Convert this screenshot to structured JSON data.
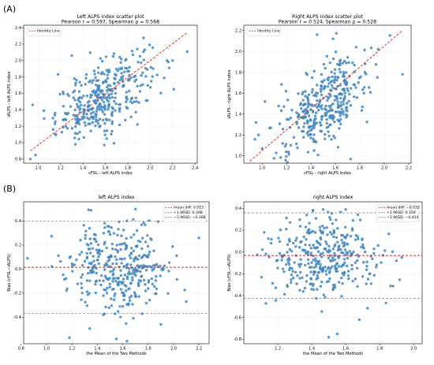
{
  "panel_labels": [
    "(A)",
    "(B)"
  ],
  "chart_data": [
    {
      "type": "scatter",
      "id": "A-left",
      "title": "Left ALPS index scatter plot",
      "subtitle": "Pearson r = 0.597, Spearman ρ = 0.568",
      "xlabel": "cFSL - left ALPS index",
      "ylabel": "iALPS - left ALPS index",
      "xlim": [
        0.87,
        2.42
      ],
      "ylim": [
        0.75,
        2.43
      ],
      "xticks": [
        1.0,
        1.2,
        1.4,
        1.6,
        1.8,
        2.0,
        2.2,
        2.4
      ],
      "yticks": [
        0.8,
        1.0,
        1.2,
        1.4,
        1.6,
        1.8,
        2.0,
        2.2,
        2.4
      ],
      "tick_decimals": 1,
      "grid": true,
      "legend": [
        "Identity Line"
      ],
      "legend_position": "top-left",
      "point_color": "#3f86c2",
      "line_color": "#e0221c",
      "point_count": 360,
      "point_center": [
        1.58,
        1.56
      ],
      "point_spread": [
        0.21,
        0.26
      ],
      "correlation": 0.597,
      "identity_line": [
        [
          0.93,
          0.9
        ],
        [
          2.33,
          2.34
        ]
      ],
      "outliers": [
        [
          0.93,
          0.8
        ],
        [
          2.33,
          2.11
        ],
        [
          2.2,
          2.0
        ],
        [
          0.95,
          1.46
        ],
        [
          1.05,
          1.39
        ],
        [
          1.15,
          1.36
        ],
        [
          2.15,
          2.0
        ],
        [
          1.3,
          2.06
        ],
        [
          2.17,
          1.91
        ],
        [
          1.95,
          2.13
        ]
      ]
    },
    {
      "type": "scatter",
      "id": "A-right",
      "title": "Right ALPS index scatter plot",
      "subtitle": "Pearson r = 0.524, Spearman ρ = 0.528",
      "xlabel": "cFSL - right ALPS index",
      "ylabel": "iALPS - right ALPS index",
      "xlim": [
        0.85,
        2.22
      ],
      "ylim": [
        0.93,
        2.25
      ],
      "xticks": [
        1.0,
        1.2,
        1.4,
        1.6,
        1.8,
        2.0,
        2.2
      ],
      "yticks": [
        1.0,
        1.2,
        1.4,
        1.6,
        1.8,
        2.0,
        2.2
      ],
      "tick_decimals": 1,
      "grid": true,
      "legend": [
        "Identity Line"
      ],
      "legend_position": "top-left",
      "point_color": "#3f86c2",
      "line_color": "#e0221c",
      "point_count": 360,
      "point_center": [
        1.5,
        1.49
      ],
      "point_spread": [
        0.18,
        0.22
      ],
      "correlation": 0.524,
      "identity_line": [
        [
          0.9,
          0.95
        ],
        [
          2.15,
          2.2
        ]
      ],
      "outliers": [
        [
          2.15,
          1.78
        ],
        [
          1.45,
          2.16
        ],
        [
          1.58,
          2.12
        ],
        [
          0.95,
          1.32
        ],
        [
          1.0,
          1.07
        ],
        [
          0.97,
          1.2
        ],
        [
          1.95,
          2.02
        ],
        [
          1.77,
          2.04
        ]
      ]
    },
    {
      "type": "scatter",
      "id": "B-left",
      "title": "left ALPS index",
      "xlabel": "the Mean of the Two Methods",
      "ylabel": "Bias (cFSL−iALPS)",
      "xlim": [
        0.82,
        2.28
      ],
      "ylim": [
        -0.62,
        0.56
      ],
      "xticks": [
        0.8,
        1.0,
        1.2,
        1.4,
        1.6,
        1.8,
        2.0,
        2.2
      ],
      "yticks": [
        -0.4,
        -0.2,
        0.0,
        0.2,
        0.4
      ],
      "tick_decimals": 1,
      "grid": true,
      "legend": [
        "mean diff: 0.015",
        "+1.96SD: 0.398",
        "−1.96SD: −0.368"
      ],
      "legend_position": "top-right",
      "mean_diff": 0.015,
      "upper_loa": 0.398,
      "lower_loa": -0.368,
      "point_color": "#3f86c2",
      "line_color": "#e0221c",
      "loa_color": "#808080",
      "point_count": 360,
      "point_center": [
        1.58,
        0.015
      ],
      "point_spread": [
        0.2,
        0.19
      ],
      "correlation": 0.0,
      "outliers": [
        [
          0.85,
          0.09
        ],
        [
          1.18,
          -0.57
        ],
        [
          2.2,
          0.26
        ],
        [
          1.7,
          0.5
        ],
        [
          1.55,
          -0.58
        ],
        [
          1.35,
          0.49
        ],
        [
          2.1,
          -0.27
        ],
        [
          1.9,
          -0.46
        ]
      ]
    },
    {
      "type": "scatter",
      "id": "B-right",
      "title": "right ALPS index",
      "xlabel": "the Mean of the Two Methods",
      "ylabel": "Bias (cFSL−iALPS)",
      "xlim": [
        1.0,
        2.05
      ],
      "ylim": [
        -0.84,
        0.46
      ],
      "xticks": [
        1.2,
        1.4,
        1.6,
        1.8,
        2.0
      ],
      "yticks": [
        -0.8,
        -0.6,
        -0.4,
        -0.2,
        0.0,
        0.2,
        0.4
      ],
      "tick_decimals": 1,
      "grid": true,
      "legend": [
        "mean diff: −0.032",
        "+1.96SD: 0.359",
        "−1.96SD: −0.424"
      ],
      "legend_position": "top-right",
      "mean_diff": -0.032,
      "upper_loa": 0.359,
      "lower_loa": -0.424,
      "point_color": "#3f86c2",
      "line_color": "#e0221c",
      "loa_color": "#808080",
      "point_count": 360,
      "point_center": [
        1.48,
        -0.032
      ],
      "point_spread": [
        0.17,
        0.2
      ],
      "correlation": 0.0,
      "outliers": [
        [
          1.5,
          -0.78
        ],
        [
          1.55,
          -0.75
        ],
        [
          1.98,
          0.39
        ],
        [
          1.12,
          0.18
        ],
        [
          1.6,
          0.39
        ],
        [
          1.93,
          -0.05
        ],
        [
          1.13,
          -0.47
        ],
        [
          1.68,
          -0.62
        ]
      ]
    }
  ]
}
